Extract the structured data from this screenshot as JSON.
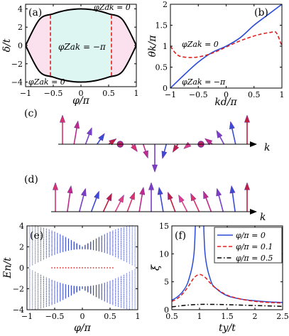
{
  "chart_data": [
    {
      "panel": "(a)",
      "type": "area",
      "xlabel": "φ/π",
      "ylabel": "δ/t",
      "xlim": [
        -1,
        1
      ],
      "ylim": [
        -4.5,
        4.5
      ],
      "xticks": [
        -1,
        -0.5,
        0,
        0.5,
        1
      ],
      "xtick_labels": [
        "−1",
        "−0.5",
        "0",
        "0.5",
        "1"
      ],
      "yticks": [
        -4,
        -2,
        0,
        2,
        4
      ],
      "ytick_labels": [
        "−4",
        "−2",
        "0",
        "2",
        "4"
      ],
      "series": [
        {
          "kind": "boundary-upper",
          "x": [
            -1,
            -0.75,
            -0.5,
            -0.25,
            0,
            0.25,
            0.5,
            0.75,
            1
          ],
          "y": [
            0,
            2.83,
            3.46,
            3.86,
            4,
            3.86,
            3.46,
            2.83,
            0
          ]
        },
        {
          "kind": "boundary-lower",
          "x": [
            -1,
            -0.75,
            -0.5,
            -0.25,
            0,
            0.25,
            0.5,
            0.75,
            1
          ],
          "y": [
            0,
            -2.83,
            -3.46,
            -3.86,
            -4,
            -3.86,
            -3.46,
            -2.83,
            0
          ]
        },
        {
          "kind": "phase-divider",
          "x": [
            -0.55,
            -0.55
          ],
          "y": [
            -3.3,
            3.3
          ]
        },
        {
          "kind": "phase-divider",
          "x": [
            0.55,
            0.55
          ],
          "y": [
            -3.3,
            3.3
          ]
        }
      ],
      "regions": [
        {
          "label": "φZak = −π",
          "x_range": [
            -0.55,
            0.55
          ],
          "color": "#def6f2"
        },
        {
          "label": "",
          "x_range": [
            -1,
            -0.55
          ],
          "color": "#fbe0ee"
        },
        {
          "label": "",
          "x_range": [
            0.55,
            1
          ],
          "color": "#fbe0ee"
        }
      ],
      "annotations": [
        "φZak = 0",
        "φZak = −π",
        "φZak = 0"
      ]
    },
    {
      "panel": "(b)",
      "type": "line",
      "xlabel": "kd/π",
      "ylabel": "θk/π",
      "xlim": [
        -1,
        1
      ],
      "ylim": [
        0,
        2
      ],
      "xticks": [
        -1,
        -0.5,
        0,
        0.5,
        1
      ],
      "xtick_labels": [
        "−1",
        "−0.5",
        "0",
        "0.5",
        "1"
      ],
      "yticks": [
        0,
        0.5,
        1,
        1.5,
        2
      ],
      "ytick_labels": [
        "0",
        "0.5",
        "1",
        "1.5",
        "2"
      ],
      "series": [
        {
          "style": "solid",
          "color": "#2a4bd7",
          "x": [
            -1,
            -0.75,
            -0.5,
            -0.25,
            0,
            0.25,
            0.5,
            0.75,
            1
          ],
          "y": [
            0,
            0.32,
            0.62,
            0.85,
            1.0,
            1.2,
            1.5,
            1.75,
            2.0
          ]
        },
        {
          "style": "dashed",
          "color": "#e02020",
          "x": [
            -1,
            -0.9,
            -0.8,
            -0.6,
            -0.4,
            -0.2,
            0,
            0.2,
            0.4,
            0.6,
            0.8,
            0.9,
            1
          ],
          "y": [
            1.0,
            0.82,
            0.75,
            0.73,
            0.77,
            0.86,
            0.98,
            1.1,
            1.2,
            1.28,
            1.33,
            1.32,
            1.0
          ]
        }
      ],
      "annotations": [
        "φZak = 0",
        "φZak = −π"
      ]
    },
    {
      "panel": "(c)",
      "type": "other",
      "axis_label": "k",
      "arrows": [
        {
          "tilt": 0,
          "len": 1.0
        },
        {
          "tilt": 0.3,
          "len": 0.8
        },
        {
          "tilt": 0.6,
          "len": 0.6
        },
        {
          "tilt": 0.9,
          "len": 0.45
        },
        {
          "tilt": 1.2,
          "len": 0.3
        },
        {
          "tilt": 0,
          "len": 0.05
        },
        {
          "tilt": 2.2,
          "len": 0.25
        },
        {
          "tilt": 2.6,
          "len": 0.45
        },
        {
          "tilt": 3.1416,
          "len": 0.95
        },
        {
          "tilt": 3.6,
          "len": 0.45
        },
        {
          "tilt": 4.0,
          "len": 0.25
        },
        {
          "tilt": 4.3,
          "len": 0.15
        },
        {
          "tilt": 0,
          "len": 0.05
        },
        {
          "tilt": 5.1,
          "len": 0.3
        },
        {
          "tilt": 5.5,
          "len": 0.55
        },
        {
          "tilt": 5.9,
          "len": 0.8
        },
        {
          "tilt": 0,
          "len": 1.0
        }
      ]
    },
    {
      "panel": "(d)",
      "type": "other",
      "axis_label": "k",
      "arrows": [
        {
          "tilt": 0,
          "len": 1.0
        },
        {
          "tilt": 0.25,
          "len": 0.9
        },
        {
          "tilt": 0.45,
          "len": 0.85
        },
        {
          "tilt": 0.6,
          "len": 0.8
        },
        {
          "tilt": 0.7,
          "len": 0.75
        },
        {
          "tilt": 0.75,
          "len": 0.7
        },
        {
          "tilt": 0.6,
          "len": 0.75
        },
        {
          "tilt": 0.3,
          "len": 0.85
        },
        {
          "tilt": 0,
          "len": 1.0
        },
        {
          "tilt": -0.3,
          "len": 0.85
        },
        {
          "tilt": -0.6,
          "len": 0.75
        },
        {
          "tilt": -0.75,
          "len": 0.7
        },
        {
          "tilt": -0.7,
          "len": 0.75
        },
        {
          "tilt": -0.6,
          "len": 0.8
        },
        {
          "tilt": -0.45,
          "len": 0.85
        },
        {
          "tilt": -0.25,
          "len": 0.9
        },
        {
          "tilt": 0,
          "len": 1.0
        }
      ]
    },
    {
      "panel": "(e)",
      "type": "scatter",
      "xlabel": "φ/π",
      "ylabel": "En/t",
      "xlim": [
        -1,
        1
      ],
      "ylim": [
        -4,
        4
      ],
      "xticks": [
        -1,
        -0.5,
        0,
        0.5,
        1
      ],
      "xtick_labels": [
        "−1",
        "−0.5",
        "0",
        "0.5",
        "1"
      ],
      "yticks": [
        -4,
        -2,
        0,
        2,
        4
      ],
      "ytick_labels": [
        "−4",
        "−2",
        "0",
        "2",
        "4"
      ],
      "bands": {
        "n_levels": 30,
        "n_phi": 41,
        "bulk_color": "#2a3fc7",
        "edge_color": "#e02020",
        "edge_range": [
          -0.55,
          0.55
        ]
      }
    },
    {
      "panel": "(f)",
      "type": "line",
      "xlabel": "ty/t",
      "ylabel": "ξ",
      "xlim": [
        0.5,
        2.5
      ],
      "ylim": [
        0,
        15
      ],
      "xticks": [
        0.5,
        1,
        1.5,
        2,
        2.5
      ],
      "xtick_labels": [
        "0.5",
        "1",
        "1.5",
        "2",
        "2.5"
      ],
      "yticks": [
        0,
        5,
        10,
        15
      ],
      "ytick_labels": [
        "0",
        "5",
        "10",
        "15"
      ],
      "legend_position": "top-right",
      "series": [
        {
          "name": "φ/π = 0",
          "style": "solid",
          "color": "#2a4bd7",
          "x": [
            0.5,
            0.6,
            0.7,
            0.8,
            0.9,
            0.95,
            1.05,
            1.1,
            1.2,
            1.3,
            1.5,
            1.75,
            2.0,
            2.25,
            2.5
          ],
          "y": [
            1.7,
            2.3,
            3.3,
            5.2,
            10.0,
            20.0,
            20.0,
            10.0,
            5.3,
            3.8,
            2.5,
            1.9,
            1.6,
            1.4,
            1.3
          ]
        },
        {
          "name": "φ/π = 0.1",
          "style": "dashed",
          "color": "#e02020",
          "x": [
            0.5,
            0.6,
            0.7,
            0.8,
            0.9,
            1.0,
            1.1,
            1.2,
            1.3,
            1.5,
            1.75,
            2.0,
            2.25,
            2.5
          ],
          "y": [
            1.5,
            2.0,
            2.9,
            4.2,
            5.7,
            6.3,
            5.8,
            4.7,
            3.8,
            2.6,
            1.9,
            1.5,
            1.3,
            1.2
          ]
        },
        {
          "name": "φ/π = 0.5",
          "style": "dashdot",
          "color": "#000000",
          "x": [
            0.5,
            0.75,
            1.0,
            1.25,
            1.5,
            2.0,
            2.5
          ],
          "y": [
            0.5,
            0.8,
            0.95,
            0.95,
            0.9,
            0.75,
            0.6
          ]
        }
      ]
    }
  ]
}
